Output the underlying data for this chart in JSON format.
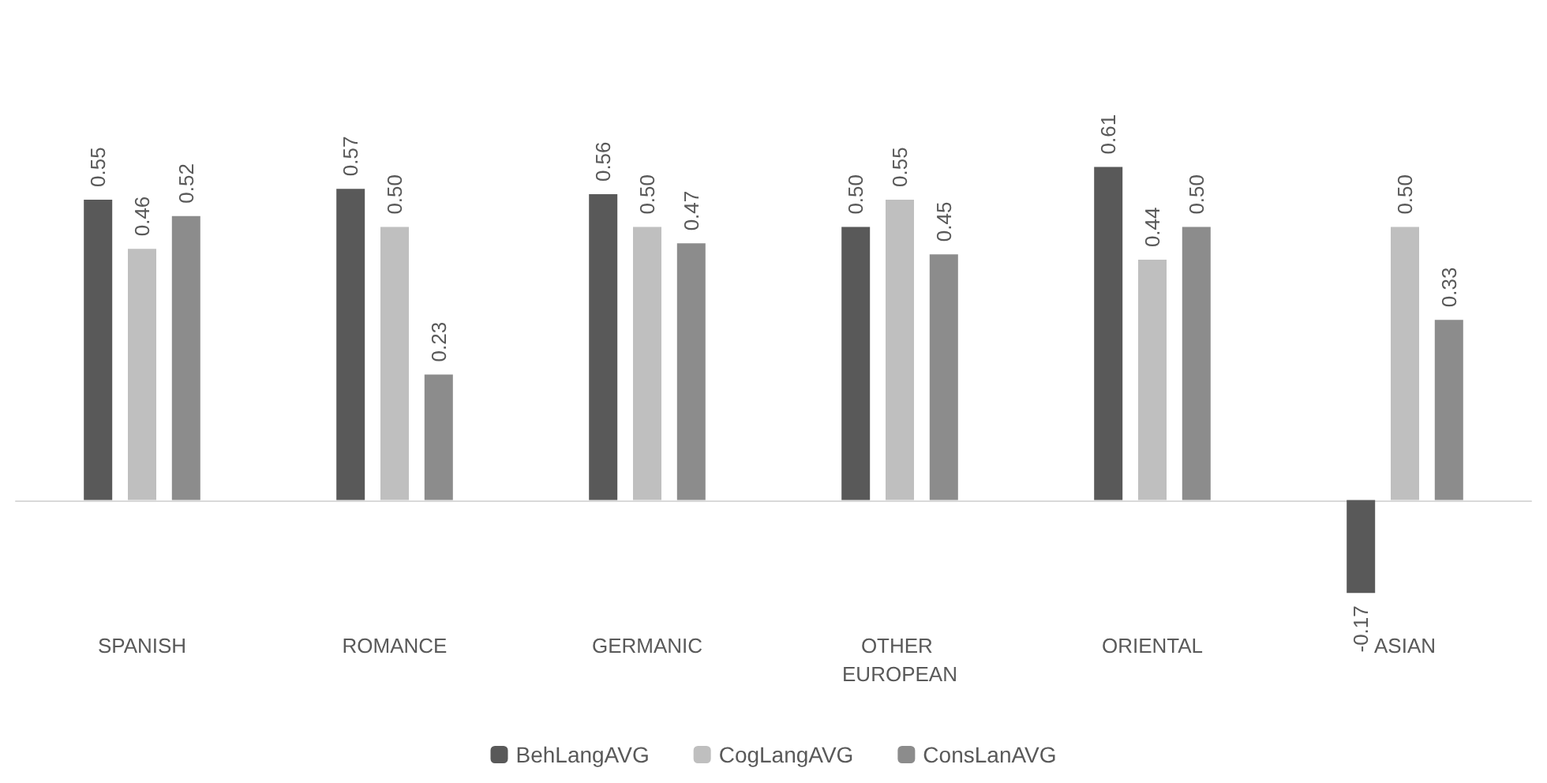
{
  "chart_data": {
    "type": "bar",
    "categories": [
      "SPANISH",
      "ROMANCE",
      "GERMANIC",
      "OTHER EUROPEAN",
      "ORIENTAL",
      "ASIAN"
    ],
    "series": [
      {
        "name": "BehLangAVG",
        "color": "#595959",
        "values": [
          0.55,
          0.57,
          0.56,
          0.5,
          0.61,
          -0.17
        ],
        "value_labels": [
          "0.55",
          "0.57",
          "0.56",
          "0.50",
          "0.61",
          "-0.17"
        ]
      },
      {
        "name": "CogLangAVG",
        "color": "#bfbfbf",
        "values": [
          0.46,
          0.5,
          0.5,
          0.55,
          0.44,
          0.5
        ],
        "value_labels": [
          "0.46",
          "0.50",
          "0.50",
          "0.55",
          "0.44",
          "0.50"
        ]
      },
      {
        "name": "ConsLanAVG",
        "color": "#8c8c8c",
        "values": [
          0.52,
          0.23,
          0.47,
          0.45,
          0.5,
          0.33
        ],
        "value_labels": [
          "0.52",
          "0.23",
          "0.47",
          "0.45",
          "0.50",
          "0.33"
        ]
      }
    ],
    "grid": false,
    "legend": "bottom",
    "tick_labels": "x"
  }
}
